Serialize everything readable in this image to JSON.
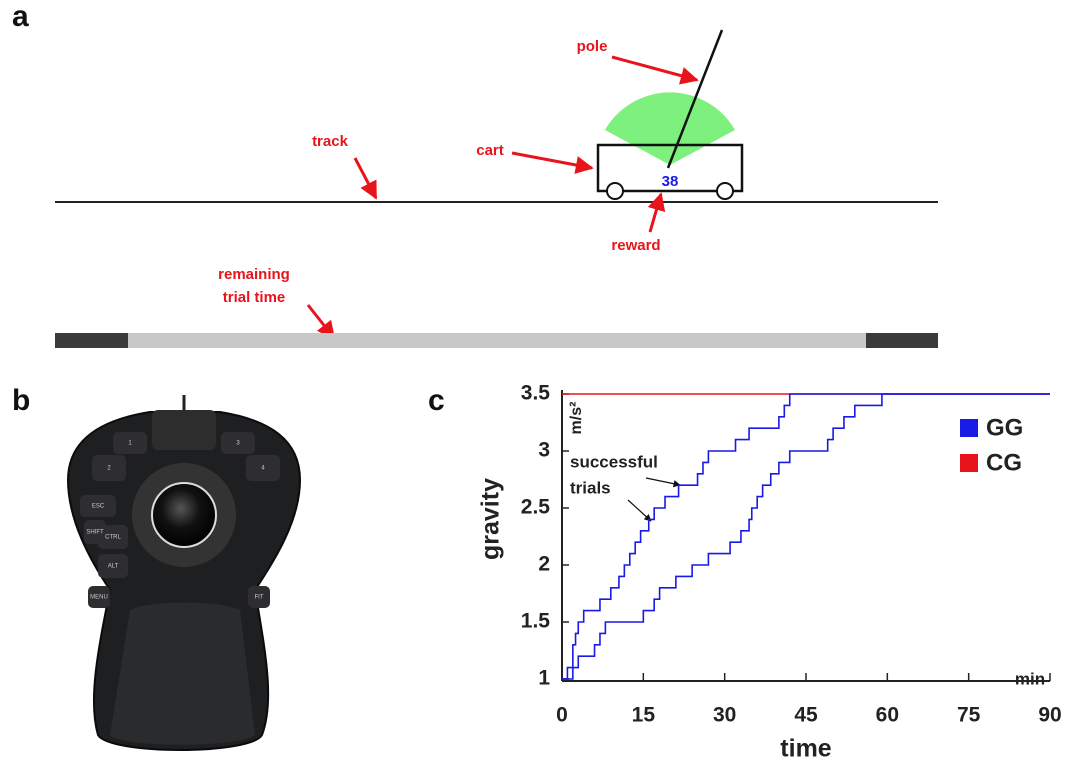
{
  "panel_a": {
    "label": "a",
    "pole": "pole",
    "cart": "cart",
    "track": "track",
    "reward": "reward",
    "reward_value": "38",
    "timer": [
      "remaining",
      "trial time"
    ]
  },
  "panel_b": {
    "label": "b",
    "keys": [
      "1",
      "2",
      "3",
      "4",
      "ESC",
      "SHIFT",
      "CTRL",
      "ALT",
      "MENU",
      "FIT"
    ]
  },
  "chart_data": {
    "type": "line",
    "label": "c",
    "xlabel": "time",
    "ylabel": "gravity",
    "xunit": "min",
    "yunit": "m/s²",
    "xlim": [
      0,
      90
    ],
    "xticks": [
      0,
      15,
      30,
      45,
      60,
      75,
      90
    ],
    "ylim": [
      1,
      3.5
    ],
    "yticks": [
      1,
      1.5,
      2,
      2.5,
      3,
      3.5
    ],
    "step": true,
    "legend": "upper right",
    "annotation": [
      "successful",
      "trials"
    ],
    "series": [
      {
        "name": "CG",
        "color": "#e8141c",
        "x": [
          0,
          90
        ],
        "values": [
          3.5,
          3.5
        ]
      },
      {
        "name": "GG",
        "color": "#1a1ae6",
        "lines": [
          {
            "x": [
              0,
              1,
              2,
              2.5,
              3,
              4,
              7,
              9,
              10.5,
              11.5,
              12.5,
              13.5,
              14.5,
              16,
              17,
              19,
              21.5,
              25,
              26,
              27,
              32,
              34.5,
              40,
              41,
              42,
              90
            ],
            "values": [
              1,
              1.1,
              1.3,
              1.4,
              1.5,
              1.6,
              1.7,
              1.8,
              1.9,
              2,
              2.1,
              2.2,
              2.3,
              2.4,
              2.5,
              2.6,
              2.7,
              2.8,
              2.9,
              3,
              3.1,
              3.2,
              3.3,
              3.4,
              3.5,
              3.5
            ]
          },
          {
            "x": [
              0,
              2,
              3,
              6,
              7,
              8,
              15,
              17,
              18,
              21,
              24,
              27,
              31,
              33,
              34.5,
              35,
              36,
              37,
              38.5,
              40,
              42,
              49,
              50,
              52,
              54,
              59,
              90
            ],
            "values": [
              1,
              1.1,
              1.2,
              1.3,
              1.4,
              1.5,
              1.6,
              1.7,
              1.8,
              1.9,
              2,
              2.1,
              2.2,
              2.3,
              2.4,
              2.5,
              2.6,
              2.7,
              2.8,
              2.9,
              3,
              3.1,
              3.2,
              3.3,
              3.4,
              3.5,
              3.5
            ]
          }
        ]
      }
    ]
  }
}
